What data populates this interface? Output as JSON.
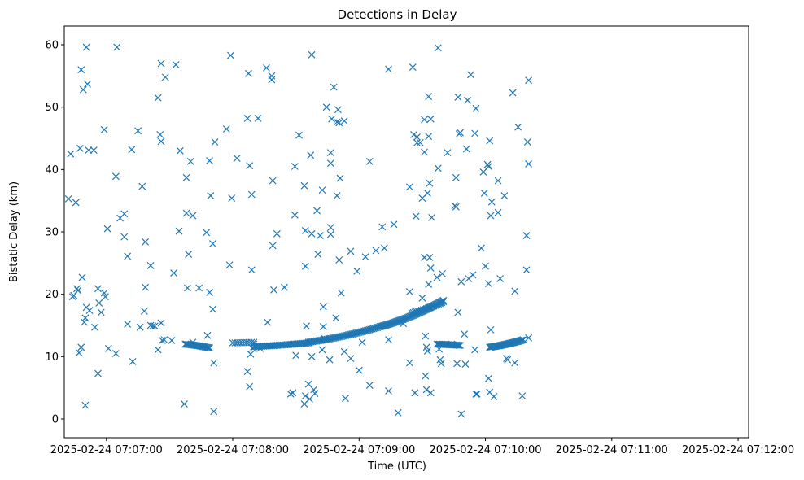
{
  "chart_data": {
    "type": "scatter",
    "title": "Detections in Delay",
    "xlabel": "Time (UTC)",
    "ylabel": "Bistatic Delay (km)",
    "marker": "x",
    "color": "#1f77b4",
    "grid": false,
    "x_ticks": [
      {
        "t": 0,
        "label": "2025-02-24 07:07:00"
      },
      {
        "t": 60,
        "label": "2025-02-24 07:08:00"
      },
      {
        "t": 120,
        "label": "2025-02-24 07:09:00"
      },
      {
        "t": 180,
        "label": "2025-02-24 07:10:00"
      },
      {
        "t": 240,
        "label": "2025-02-24 07:11:00"
      },
      {
        "t": 300,
        "label": "2025-02-24 07:12:00"
      }
    ],
    "y_ticks": [
      "0",
      "10",
      "20",
      "30",
      "40",
      "50",
      "60"
    ],
    "xlim": [
      "2025-02-24 07:06:40",
      "2025-02-24 07:12:05"
    ],
    "ylim": [
      -3,
      63
    ],
    "series": [
      {
        "name": "",
        "points": [
          [
            -18,
            35.3
          ],
          [
            -17,
            42.5
          ],
          [
            -16,
            19.6
          ],
          [
            -15.5,
            19.8
          ],
          [
            -14.5,
            34.7
          ],
          [
            -14,
            20.9
          ],
          [
            -13.5,
            20.6
          ],
          [
            -13,
            10.6
          ],
          [
            -12.5,
            43.4
          ],
          [
            -12,
            56
          ],
          [
            -12,
            11.5
          ],
          [
            -11.5,
            22.7
          ],
          [
            -11,
            52.8
          ],
          [
            -10.5,
            15.5
          ],
          [
            -10,
            16.2
          ],
          [
            -10,
            2.2
          ],
          [
            -9.5,
            59.6
          ],
          [
            -9.5,
            17.9
          ],
          [
            -9,
            53.7
          ],
          [
            -8.5,
            43.1
          ],
          [
            -8,
            17.4
          ],
          [
            -6,
            43.1
          ],
          [
            -5.5,
            14.7
          ],
          [
            -4,
            20.9
          ],
          [
            -4,
            7.3
          ],
          [
            -3.5,
            18.6
          ],
          [
            -2.5,
            17.1
          ],
          [
            -1,
            46.4
          ],
          [
            -1,
            20.2
          ],
          [
            -0.5,
            19.6
          ],
          [
            0.5,
            30.5
          ],
          [
            1,
            11.3
          ],
          [
            4.5,
            10.5
          ],
          [
            4.5,
            38.9
          ],
          [
            5,
            59.6
          ],
          [
            6.5,
            32.2
          ],
          [
            8.5,
            32.9
          ],
          [
            8.5,
            29.2
          ],
          [
            10,
            26.1
          ],
          [
            10,
            15.2
          ],
          [
            12,
            43.2
          ],
          [
            12.5,
            9.2
          ],
          [
            15,
            46.2
          ],
          [
            16,
            14.7
          ],
          [
            17,
            37.3
          ],
          [
            18,
            17.3
          ],
          [
            18.5,
            28.4
          ],
          [
            18.5,
            21.1
          ],
          [
            21,
            24.6
          ],
          [
            21,
            15
          ],
          [
            22,
            14.9
          ],
          [
            23,
            14.9
          ],
          [
            24.5,
            51.5
          ],
          [
            24.5,
            11.1
          ],
          [
            25.5,
            45.6
          ],
          [
            26,
            44.5
          ],
          [
            26,
            15.4
          ],
          [
            26,
            57
          ],
          [
            26.5,
            12.6
          ],
          [
            27.5,
            12.7
          ],
          [
            28,
            54.8
          ],
          [
            31,
            12.6
          ],
          [
            32,
            23.4
          ],
          [
            33,
            56.8
          ],
          [
            34.5,
            30.1
          ],
          [
            35,
            43
          ],
          [
            37,
            2.4
          ],
          [
            37.5,
            12
          ],
          [
            38,
            38.7
          ],
          [
            38,
            33
          ],
          [
            38.5,
            21
          ],
          [
            39,
            26.4
          ],
          [
            40,
            41.3
          ],
          [
            41,
            32.6
          ],
          [
            41,
            12.3
          ],
          [
            44,
            21
          ],
          [
            47.5,
            29.9
          ],
          [
            48,
            13.4
          ],
          [
            49,
            41.4
          ],
          [
            49,
            20.3
          ],
          [
            49.5,
            35.8
          ],
          [
            50.5,
            28.1
          ],
          [
            50.5,
            17.6
          ],
          [
            51,
            9
          ],
          [
            51,
            1.2
          ],
          [
            51.5,
            44.4
          ],
          [
            57,
            46.5
          ],
          [
            58.5,
            24.7
          ],
          [
            59,
            58.3
          ],
          [
            59.5,
            35.4
          ],
          [
            62,
            41.8
          ],
          [
            67,
            48.2
          ],
          [
            67,
            7.6
          ],
          [
            67.5,
            55.4
          ],
          [
            68,
            40.6
          ],
          [
            68,
            5.2
          ],
          [
            68.5,
            10.4
          ],
          [
            69,
            23.9
          ],
          [
            69,
            36
          ],
          [
            69.5,
            11.3
          ],
          [
            70,
            12
          ],
          [
            72,
            48.2
          ],
          [
            73,
            11.3
          ],
          [
            76,
            56.3
          ],
          [
            76.5,
            15.5
          ],
          [
            78.5,
            55
          ],
          [
            78.5,
            54.4
          ],
          [
            79,
            27.8
          ],
          [
            79,
            38.2
          ],
          [
            79.5,
            20.7
          ],
          [
            81,
            29.7
          ],
          [
            84.5,
            21.1
          ],
          [
            87.5,
            4
          ],
          [
            88.5,
            4.2
          ],
          [
            89.5,
            40.5
          ],
          [
            89.5,
            32.7
          ],
          [
            90,
            10.2
          ],
          [
            91.5,
            45.5
          ],
          [
            94,
            2.4
          ],
          [
            94,
            37.4
          ],
          [
            94.5,
            24.5
          ],
          [
            94.5,
            30.2
          ],
          [
            94.5,
            3.7
          ],
          [
            95,
            14.9
          ],
          [
            96,
            5.6
          ],
          [
            96.5,
            3.2
          ],
          [
            97,
            42.3
          ],
          [
            97.5,
            10
          ],
          [
            97.5,
            58.4
          ],
          [
            97.5,
            29.7
          ],
          [
            98.5,
            4.7
          ],
          [
            99,
            4.1
          ],
          [
            100,
            33.4
          ],
          [
            100.5,
            26.4
          ],
          [
            101.5,
            29.4
          ],
          [
            102.5,
            36.7
          ],
          [
            102.5,
            11.1
          ],
          [
            103,
            18
          ],
          [
            103,
            14.8
          ],
          [
            103.5,
            12.9
          ],
          [
            104.5,
            50
          ],
          [
            106,
            9.5
          ],
          [
            106.5,
            42.7
          ],
          [
            106.5,
            41
          ],
          [
            106.5,
            30.7
          ],
          [
            106.5,
            29.6
          ],
          [
            107,
            48.1
          ],
          [
            108,
            53.2
          ],
          [
            109,
            16.2
          ],
          [
            109.5,
            47.6
          ],
          [
            109.5,
            35.8
          ],
          [
            110,
            49.6
          ],
          [
            110.5,
            47.5
          ],
          [
            110.5,
            25.5
          ],
          [
            111,
            38.6
          ],
          [
            111.5,
            20.2
          ],
          [
            113,
            47.8
          ],
          [
            113,
            10.8
          ],
          [
            113.5,
            3.3
          ],
          [
            116,
            26.9
          ],
          [
            116,
            9.7
          ],
          [
            119,
            23.7
          ],
          [
            120,
            7.8
          ],
          [
            121.5,
            12.3
          ],
          [
            123,
            26
          ],
          [
            125,
            41.3
          ],
          [
            125,
            5.4
          ],
          [
            128,
            27
          ],
          [
            131,
            30.8
          ],
          [
            132,
            27.4
          ],
          [
            134,
            4.5
          ],
          [
            134,
            56.1
          ],
          [
            134,
            12.7
          ],
          [
            136.5,
            31.2
          ],
          [
            138.5,
            1
          ],
          [
            141,
            15.3
          ],
          [
            144,
            9
          ],
          [
            144,
            37.2
          ],
          [
            144,
            20.4
          ],
          [
            145.5,
            56.4
          ],
          [
            146,
            45.6
          ],
          [
            146.5,
            4.2
          ],
          [
            147,
            32.5
          ],
          [
            147.5,
            45.2
          ],
          [
            147.5,
            44.3
          ],
          [
            149,
            44.3
          ],
          [
            150,
            35.4
          ],
          [
            150,
            19.4
          ],
          [
            151,
            48
          ],
          [
            151,
            42.8
          ],
          [
            151,
            25.9
          ],
          [
            151.5,
            13.3
          ],
          [
            151.5,
            6.9
          ],
          [
            152,
            4.7
          ],
          [
            152,
            11.5
          ],
          [
            152.5,
            36.2
          ],
          [
            152.5,
            10.9
          ],
          [
            153,
            45.3
          ],
          [
            153,
            51.7
          ],
          [
            153,
            21.6
          ],
          [
            153.5,
            25.9
          ],
          [
            153.5,
            37.8
          ],
          [
            154,
            48.1
          ],
          [
            154,
            24.2
          ],
          [
            154,
            4.2
          ],
          [
            154.5,
            32.3
          ],
          [
            157,
            22.7
          ],
          [
            157.5,
            40.2
          ],
          [
            157.5,
            59.5
          ],
          [
            158,
            11.2
          ],
          [
            158.5,
            9.5
          ],
          [
            159,
            8.9
          ],
          [
            159.5,
            23.3
          ],
          [
            162,
            42.7
          ],
          [
            164,
            12
          ],
          [
            165.5,
            34.2
          ],
          [
            166,
            38.7
          ],
          [
            166,
            34
          ],
          [
            166.5,
            8.9
          ],
          [
            167,
            51.6
          ],
          [
            167,
            17.1
          ],
          [
            167.5,
            45.7
          ],
          [
            168,
            45.9
          ],
          [
            168.5,
            0.8
          ],
          [
            168.5,
            22
          ],
          [
            170,
            13.6
          ],
          [
            170.5,
            8.8
          ],
          [
            171,
            43.3
          ],
          [
            171.5,
            51.1
          ],
          [
            172,
            22.5
          ],
          [
            173,
            55.2
          ],
          [
            174,
            23.1
          ],
          [
            175,
            45.8
          ],
          [
            175,
            11.1
          ],
          [
            175.5,
            4
          ],
          [
            175.5,
            49.8
          ],
          [
            176,
            4
          ],
          [
            178,
            27.4
          ],
          [
            179,
            39.6
          ],
          [
            179.5,
            36.2
          ],
          [
            180,
            24.5
          ],
          [
            181,
            40.8
          ],
          [
            181.5,
            40.5
          ],
          [
            181.5,
            21.7
          ],
          [
            181.5,
            6.5
          ],
          [
            182,
            44.6
          ],
          [
            182,
            4.3
          ],
          [
            182.5,
            14.3
          ],
          [
            182.5,
            32.6
          ],
          [
            183,
            34.8
          ],
          [
            184,
            3.6
          ],
          [
            186,
            33.1
          ],
          [
            186,
            38.2
          ],
          [
            187,
            22.5
          ],
          [
            189,
            35.8
          ],
          [
            190,
            9.7
          ],
          [
            190.5,
            9.5
          ],
          [
            193,
            52.3
          ],
          [
            194,
            20.5
          ],
          [
            194,
            9
          ],
          [
            195.5,
            46.8
          ],
          [
            197.5,
            3.7
          ],
          [
            199.5,
            29.4
          ],
          [
            199.5,
            23.9
          ],
          [
            200,
            44.4
          ],
          [
            200.5,
            13
          ],
          [
            200.5,
            54.3
          ],
          [
            200.5,
            40.9
          ]
        ]
      }
    ],
    "tracks": [
      {
        "t_start": 37.5,
        "t_end": 49,
        "y_start": 12.0,
        "y_end": 11.4,
        "n": 22
      },
      {
        "t_start": 60,
        "t_end": 70,
        "y_start": 12.2,
        "y_end": 12.3,
        "n": 10
      },
      {
        "t_start": 70,
        "t_end": 96,
        "y_start": 11.6,
        "y_end": 12.2,
        "n": 40
      },
      {
        "t_start": 96,
        "t_end": 130,
        "y_start": 12.3,
        "y_end": 14.8,
        "n": 55
      },
      {
        "t_start": 130,
        "t_end": 160,
        "y_start": 14.8,
        "y_end": 19.0,
        "n": 60
      },
      {
        "t_start": 145,
        "t_end": 160,
        "y_start": 17.0,
        "y_end": 18.8,
        "n": 20
      },
      {
        "t_start": 157,
        "t_end": 168,
        "y_start": 12.0,
        "y_end": 11.8,
        "n": 20
      },
      {
        "t_start": 182,
        "t_end": 198,
        "y_start": 11.5,
        "y_end": 12.7,
        "n": 35
      }
    ]
  }
}
